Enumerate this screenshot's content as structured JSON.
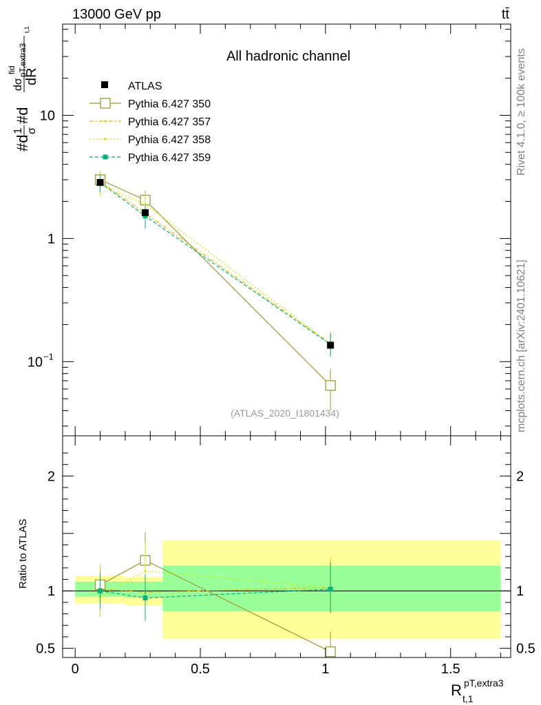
{
  "header": {
    "energy_label": "13000 GeV pp",
    "process_label": "tt̄"
  },
  "side_texts": {
    "rivet": "Rivet 4.1.0, ≥ 100k events",
    "mcplots": "mcplots.cern.ch [arXiv:2401.10621]"
  },
  "chart_data": {
    "type": "line",
    "title": "All hadronic channel",
    "analysis_id": "(ATLAS_2020_I1801434)",
    "ylabel": "#d(1/σ)#d(dσ^fid_{pT,extra3}/dR_{t,1})",
    "ylabel_parts": {
      "main": "#d",
      "frac_num": "1",
      "frac_den": "σ",
      "mid": "#d",
      "d_num": "dσ",
      "sup": "fid",
      "sub": "pT,extra3",
      "subsub": "t,1",
      "d_den": "dR"
    },
    "xlabel": "R",
    "xlabel_sup": "pT,extra3",
    "xlabel_sub": "t,1",
    "ratio_ylabel": "Ratio to ATLAS",
    "xlim": [
      -0.05,
      1.74
    ],
    "ylim_main": [
      0.025,
      55
    ],
    "ylim_ratio": [
      0.42,
      2.35
    ],
    "yscale_main": "log",
    "main_yticks": [
      {
        "value": 0.1,
        "label": "10",
        "exp": "−1"
      },
      {
        "value": 1,
        "label": "1"
      },
      {
        "value": 10,
        "label": "10"
      }
    ],
    "ratio_yticks": [
      {
        "value": 0.5,
        "label": "0.5"
      },
      {
        "value": 1,
        "label": "1"
      },
      {
        "value": 2,
        "label": "2"
      }
    ],
    "xticks": [
      {
        "value": 0,
        "label": "0"
      },
      {
        "value": 0.5,
        "label": "0.5"
      },
      {
        "value": 1,
        "label": "1"
      },
      {
        "value": 1.5,
        "label": "1.5"
      }
    ],
    "bins": [
      {
        "lo": 0.0,
        "hi": 0.2,
        "x": 0.1
      },
      {
        "lo": 0.2,
        "hi": 0.35,
        "x": 0.28
      },
      {
        "lo": 0.35,
        "hi": 1.7,
        "x": 1.02
      }
    ],
    "data": {
      "name": "ATLAS",
      "values": [
        2.85,
        1.62,
        0.136
      ],
      "band_inner": [
        [
          0.95,
          1.08
        ],
        [
          0.94,
          1.08
        ],
        [
          0.82,
          1.22
        ]
      ],
      "band_outer": [
        [
          0.89,
          1.13
        ],
        [
          0.87,
          1.12
        ],
        [
          0.58,
          1.44
        ]
      ]
    },
    "series": [
      {
        "name": "Pythia 6.427 350",
        "color": "#999933",
        "style": "solid",
        "marker": "open-square",
        "values": [
          3.0,
          2.05,
          0.064
        ],
        "err_lo": [
          2.7,
          1.6,
          0.04
        ],
        "err_hi": [
          3.3,
          2.45,
          0.088
        ]
      },
      {
        "name": "Pythia 6.427 357",
        "color": "#e6b800",
        "style": "dashdot",
        "marker": "small-dot",
        "values": [
          2.9,
          1.6,
          0.14
        ],
        "err_lo": [
          2.3,
          1.2,
          0.11
        ],
        "err_hi": [
          3.5,
          2.0,
          0.175
        ]
      },
      {
        "name": "Pythia 6.427 358",
        "color": "#cce600",
        "style": "dotted",
        "marker": "small-dot",
        "values": [
          2.7,
          1.9,
          0.14
        ],
        "err_lo": [
          2.2,
          1.5,
          0.11
        ],
        "err_hi": [
          3.2,
          2.3,
          0.17
        ]
      },
      {
        "name": "Pythia 6.427 359",
        "color": "#00b37a",
        "style": "dashed",
        "marker": "filled-square",
        "values": [
          2.85,
          1.52,
          0.138
        ],
        "err_lo": [
          2.4,
          1.2,
          0.11
        ],
        "err_hi": [
          3.3,
          1.85,
          0.17
        ]
      }
    ]
  }
}
